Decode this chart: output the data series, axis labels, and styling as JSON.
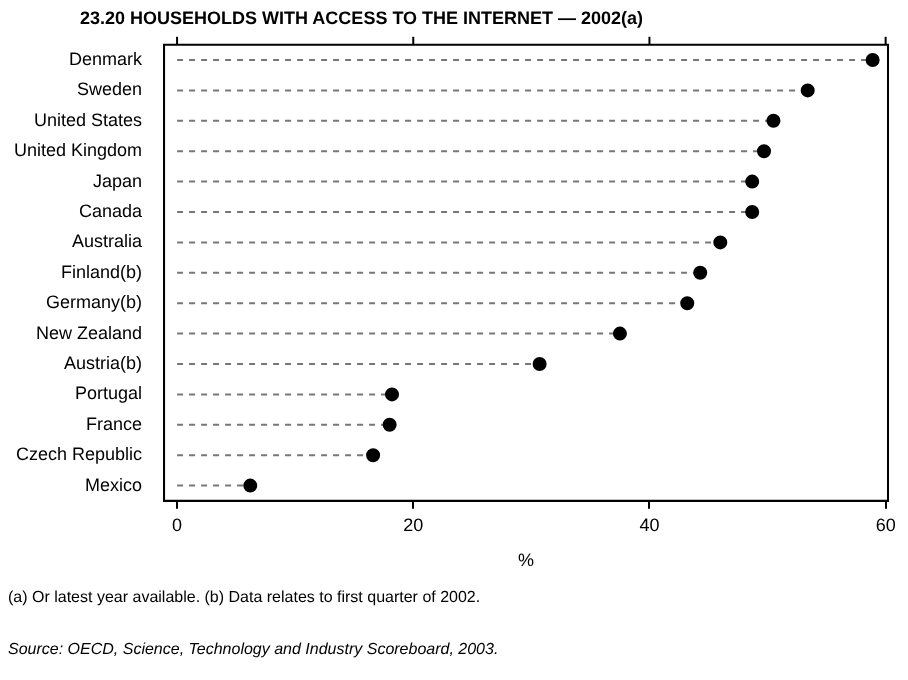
{
  "chart_data": {
    "type": "lollipop",
    "title": "23.20   HOUSEHOLDS WITH ACCESS TO THE INTERNET — 2002(a)",
    "xlabel": "%",
    "orientation": "horizontal",
    "categories": [
      "Denmark",
      "Sweden",
      "United States",
      "United Kingdom",
      "Japan",
      "Canada",
      "Australia",
      "Finland(b)",
      "Germany(b)",
      "New Zealand",
      "Austria(b)",
      "Portugal",
      "France",
      "Czech Republic",
      "Mexico"
    ],
    "values": [
      58.9,
      53.4,
      50.5,
      49.7,
      48.7,
      48.7,
      46.0,
      44.3,
      43.2,
      37.5,
      30.7,
      18.2,
      18.0,
      16.6,
      6.2
    ],
    "color": "#000000",
    "marker": "circle",
    "line_style": "dashed",
    "grid": false,
    "legend": false,
    "xlim": [
      -1.1,
      60.2
    ],
    "xticks": [
      0,
      20,
      40,
      60
    ],
    "annotations": [
      "(a) Or latest year available. (b) Data relates to first quarter of 2002.",
      "Source: OECD, Science, Technology and Industry Scoreboard, 2003."
    ]
  }
}
